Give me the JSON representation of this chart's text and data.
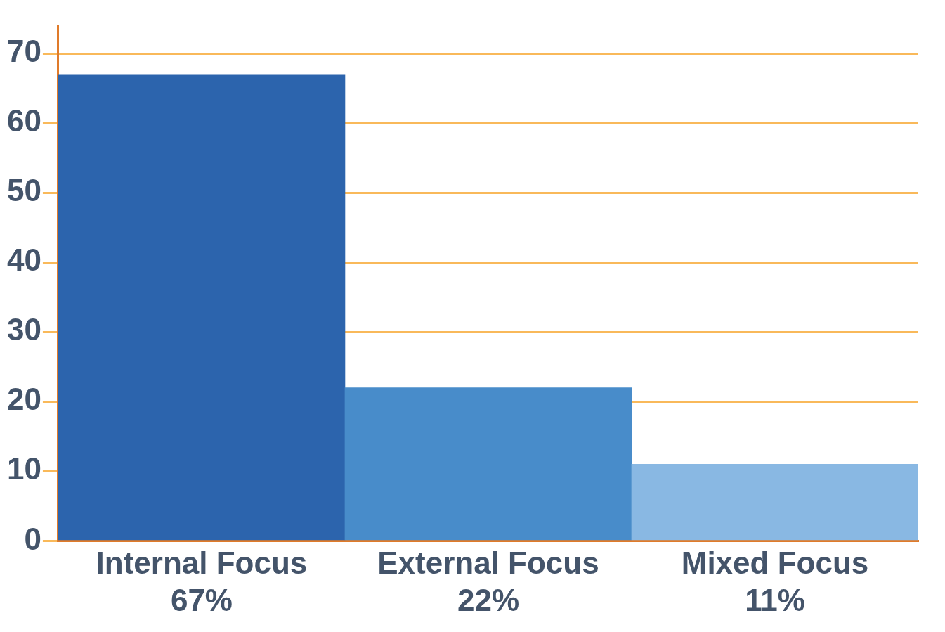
{
  "chart_data": {
    "type": "bar",
    "categories": [
      "Internal Focus",
      "External Focus",
      "Mixed Focus"
    ],
    "values": [
      67,
      22,
      11
    ],
    "colors": [
      "#2c64ad",
      "#488cca",
      "#89b8e3"
    ],
    "value_labels": [
      "67%",
      "22%",
      "11%"
    ],
    "ylim": [
      0,
      74
    ],
    "yticks": [
      0,
      10,
      20,
      30,
      40,
      50,
      60,
      70
    ],
    "grid": "y",
    "legend": false
  }
}
